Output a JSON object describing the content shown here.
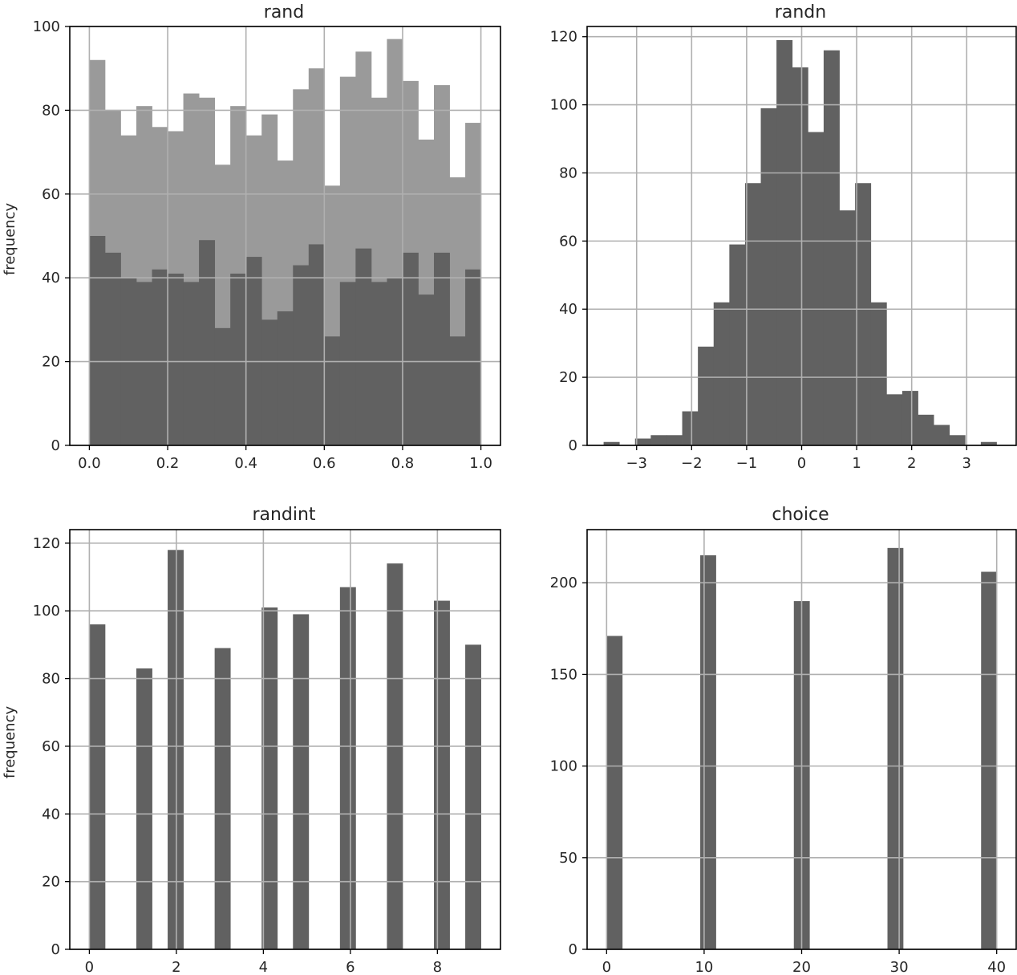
{
  "colors": {
    "dark_bar": "#616161",
    "light_bar": "#9a9a9a",
    "grid": "#b0b0b0",
    "axis": "#000000",
    "background": "#ffffff"
  },
  "chart_data": [
    {
      "type": "bar",
      "title": "rand",
      "ylabel": "frequency",
      "grid": true,
      "xlim": [
        -0.05,
        1.05
      ],
      "ylim": [
        0,
        100
      ],
      "xticks": [
        {
          "v": 0.0,
          "label": "0.0"
        },
        {
          "v": 0.2,
          "label": "0.2"
        },
        {
          "v": 0.4,
          "label": "0.4"
        },
        {
          "v": 0.6,
          "label": "0.6"
        },
        {
          "v": 0.8,
          "label": "0.8"
        },
        {
          "v": 1.0,
          "label": "1.0"
        }
      ],
      "yticks": [
        {
          "v": 0,
          "label": "0"
        },
        {
          "v": 20,
          "label": "20"
        },
        {
          "v": 40,
          "label": "40"
        },
        {
          "v": 60,
          "label": "60"
        },
        {
          "v": 80,
          "label": "80"
        },
        {
          "v": 100,
          "label": "100"
        }
      ],
      "series": [
        {
          "style": "light",
          "bins": {
            "start": 0.0,
            "width": 0.04
          },
          "values": [
            92,
            80,
            74,
            81,
            76,
            75,
            84,
            83,
            67,
            81,
            74,
            79,
            68,
            85,
            90,
            62,
            88,
            94,
            83,
            97,
            87,
            73,
            86,
            64,
            77
          ]
        },
        {
          "style": "dark",
          "bins": {
            "start": 0.0,
            "width": 0.04
          },
          "values": [
            50,
            46,
            40,
            39,
            42,
            41,
            39,
            49,
            28,
            41,
            45,
            30,
            32,
            43,
            48,
            26,
            39,
            47,
            39,
            40,
            46,
            36,
            46,
            26,
            42
          ]
        }
      ]
    },
    {
      "type": "bar",
      "title": "randn",
      "ylabel": "",
      "grid": true,
      "xlim": [
        -3.9,
        3.9
      ],
      "ylim": [
        0,
        123
      ],
      "xticks": [
        {
          "v": -3,
          "label": "−3"
        },
        {
          "v": -2,
          "label": "−2"
        },
        {
          "v": -1,
          "label": "−1"
        },
        {
          "v": 0,
          "label": "0"
        },
        {
          "v": 1,
          "label": "1"
        },
        {
          "v": 2,
          "label": "2"
        },
        {
          "v": 3,
          "label": "3"
        }
      ],
      "yticks": [
        {
          "v": 0,
          "label": "0"
        },
        {
          "v": 20,
          "label": "20"
        },
        {
          "v": 40,
          "label": "40"
        },
        {
          "v": 60,
          "label": "60"
        },
        {
          "v": 80,
          "label": "80"
        },
        {
          "v": 100,
          "label": "100"
        },
        {
          "v": 120,
          "label": "120"
        }
      ],
      "series": [
        {
          "style": "dark",
          "bins": {
            "start": -3.6,
            "width": 0.2857
          },
          "values": [
            1,
            0,
            2,
            3,
            3,
            10,
            29,
            42,
            59,
            77,
            99,
            119,
            111,
            92,
            116,
            69,
            77,
            42,
            15,
            16,
            9,
            6,
            3,
            0,
            1
          ]
        }
      ]
    },
    {
      "type": "bar",
      "title": "randint",
      "ylabel": "frequency",
      "grid": true,
      "xlim": [
        -0.45,
        9.45
      ],
      "ylim": [
        0,
        124
      ],
      "xticks": [
        {
          "v": 0,
          "label": "0"
        },
        {
          "v": 2,
          "label": "2"
        },
        {
          "v": 4,
          "label": "4"
        },
        {
          "v": 6,
          "label": "6"
        },
        {
          "v": 8,
          "label": "8"
        }
      ],
      "yticks": [
        {
          "v": 0,
          "label": "0"
        },
        {
          "v": 20,
          "label": "20"
        },
        {
          "v": 40,
          "label": "40"
        },
        {
          "v": 60,
          "label": "60"
        },
        {
          "v": 80,
          "label": "80"
        },
        {
          "v": 100,
          "label": "100"
        },
        {
          "v": 120,
          "label": "120"
        }
      ],
      "series": [
        {
          "style": "dark",
          "bins": {
            "start": 0.0,
            "width": 0.36
          },
          "values": [
            96,
            0,
            0,
            83,
            0,
            118,
            0,
            0,
            89,
            0,
            0,
            101,
            0,
            99,
            0,
            0,
            107,
            0,
            0,
            114,
            0,
            0,
            103,
            0,
            90
          ]
        }
      ]
    },
    {
      "type": "bar",
      "title": "choice",
      "ylabel": "",
      "grid": true,
      "xlim": [
        -2.0,
        42.0
      ],
      "ylim": [
        0,
        229
      ],
      "xticks": [
        {
          "v": 0,
          "label": "0"
        },
        {
          "v": 10,
          "label": "10"
        },
        {
          "v": 20,
          "label": "20"
        },
        {
          "v": 30,
          "label": "30"
        },
        {
          "v": 40,
          "label": "40"
        }
      ],
      "yticks": [
        {
          "v": 0,
          "label": "0"
        },
        {
          "v": 50,
          "label": "50"
        },
        {
          "v": 100,
          "label": "100"
        },
        {
          "v": 150,
          "label": "150"
        },
        {
          "v": 200,
          "label": "200"
        }
      ],
      "series": [
        {
          "style": "dark",
          "bins": {
            "start": 0.0,
            "width": 1.6
          },
          "values": [
            171,
            0,
            0,
            0,
            0,
            0,
            215,
            0,
            0,
            0,
            0,
            0,
            190,
            0,
            0,
            0,
            0,
            0,
            219,
            0,
            0,
            0,
            0,
            0,
            206
          ]
        }
      ]
    }
  ]
}
